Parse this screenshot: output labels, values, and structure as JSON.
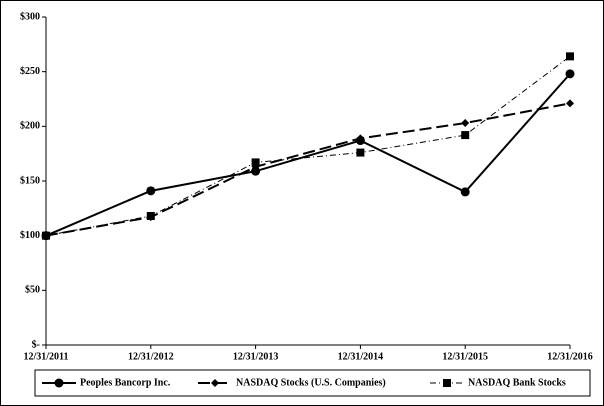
{
  "chart_data": {
    "type": "line",
    "categories": [
      "12/31/2011",
      "12/31/2012",
      "12/31/2013",
      "12/31/2014",
      "12/31/2015",
      "12/31/2016"
    ],
    "series": [
      {
        "name": "Peoples Bancorp Inc.",
        "color": "#000000",
        "marker": "circle",
        "dash": "solid",
        "values": [
          100,
          141,
          159,
          187,
          140,
          248
        ]
      },
      {
        "name": "NASDAQ Stocks (U.S. Companies)",
        "color": "#000000",
        "marker": "diamond",
        "dash": "long",
        "values": [
          100,
          117,
          163,
          189,
          203,
          221
        ]
      },
      {
        "name": "NASDAQ Bank Stocks",
        "color": "#000000",
        "marker": "square",
        "dash": "dashdot",
        "values": [
          100,
          118,
          167,
          176,
          192,
          264
        ]
      }
    ],
    "ylim": [
      0,
      300
    ],
    "yticks": [
      {
        "value": 0,
        "label": "$-"
      },
      {
        "value": 50,
        "label": "$50"
      },
      {
        "value": 100,
        "label": "$100"
      },
      {
        "value": 150,
        "label": "$150"
      },
      {
        "value": 200,
        "label": "$200"
      },
      {
        "value": 250,
        "label": "$250"
      },
      {
        "value": 300,
        "label": "$300"
      }
    ],
    "legend": "bottom"
  }
}
